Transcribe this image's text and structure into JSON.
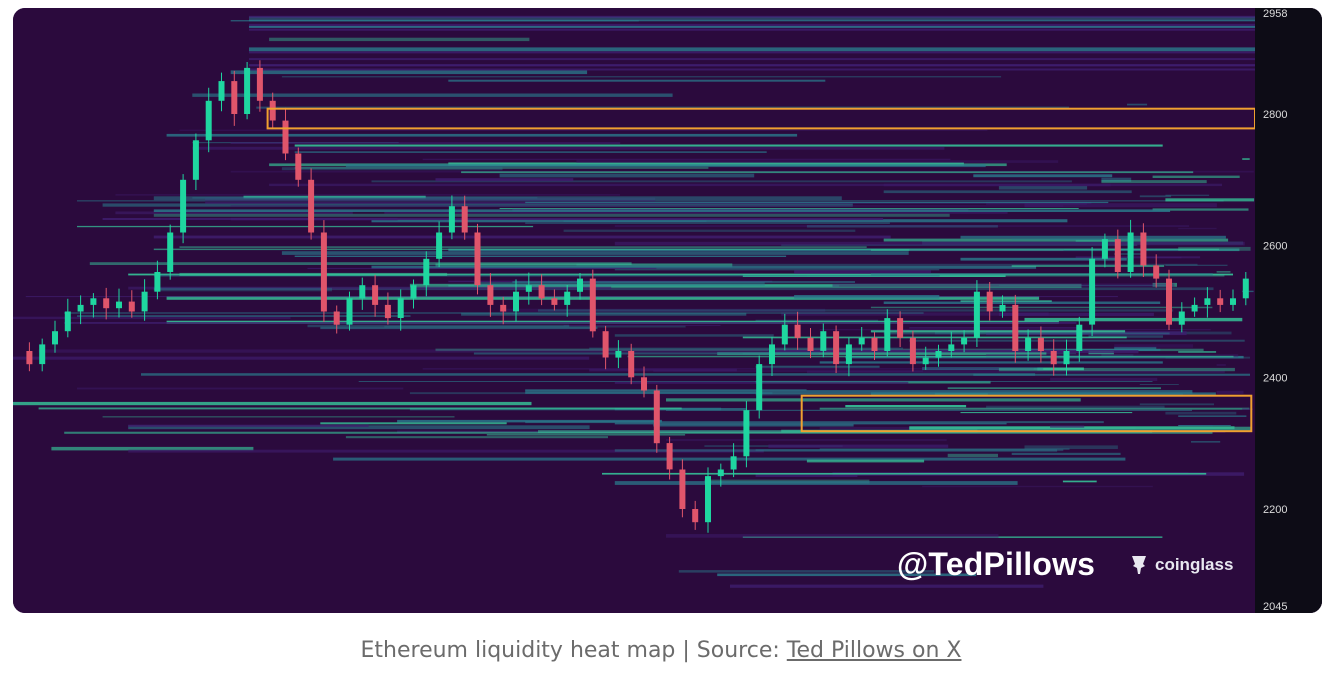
{
  "chart_data": {
    "type": "heatmap",
    "title": "",
    "xlabel": "",
    "ylabel": "",
    "ylim": [
      2045,
      2958
    ],
    "y_ticks": [
      2958,
      2800,
      2600,
      2400,
      2200,
      2045
    ],
    "grid": false,
    "price_path": [
      2440,
      2420,
      2450,
      2470,
      2500,
      2510,
      2520,
      2505,
      2515,
      2500,
      2530,
      2560,
      2620,
      2700,
      2760,
      2820,
      2850,
      2800,
      2870,
      2820,
      2790,
      2740,
      2700,
      2620,
      2500,
      2480,
      2520,
      2540,
      2510,
      2490,
      2520,
      2540,
      2580,
      2620,
      2660,
      2620,
      2540,
      2510,
      2500,
      2530,
      2540,
      2520,
      2510,
      2530,
      2550,
      2470,
      2430,
      2440,
      2400,
      2380,
      2300,
      2260,
      2200,
      2180,
      2250,
      2260,
      2280,
      2350,
      2420,
      2450,
      2480,
      2460,
      2440,
      2470,
      2420,
      2450,
      2460,
      2440,
      2490,
      2460,
      2420,
      2430,
      2440,
      2450,
      2460,
      2530,
      2500,
      2510,
      2440,
      2460,
      2440,
      2420,
      2440,
      2480,
      2580,
      2610,
      2560,
      2620,
      2570,
      2550,
      2480,
      2500,
      2510,
      2520,
      2510,
      2520,
      2550
    ],
    "highlight_zones": [
      {
        "label": "liquidity-cluster-upper",
        "y_low": 2778,
        "y_high": 2808,
        "x_start": 0.205,
        "x_end": 1.0
      },
      {
        "label": "liquidity-cluster-lower",
        "y_low": 2318,
        "y_high": 2372,
        "x_start": 0.635,
        "x_end": 0.997
      }
    ],
    "colors": {
      "background": "#2b0a3d",
      "low_liquidity": "#3f1d6e",
      "mid_liquidity": "#2a7a8c",
      "high_liquidity": "#36c79a",
      "peak_liquidity": "#f2e14a",
      "candle_up": "#1fd6a0",
      "candle_down": "#e0556b",
      "zone_outline": "#f0a030",
      "axis_panel": "#0d0c16",
      "axis_text": "#dcdcdc"
    }
  },
  "watermark": {
    "handle": "@TedPillows",
    "brand": "coinglass"
  },
  "caption": {
    "prefix": "Ethereum liquidity heat map | Source: ",
    "link_text": "Ted Pillows on X"
  }
}
